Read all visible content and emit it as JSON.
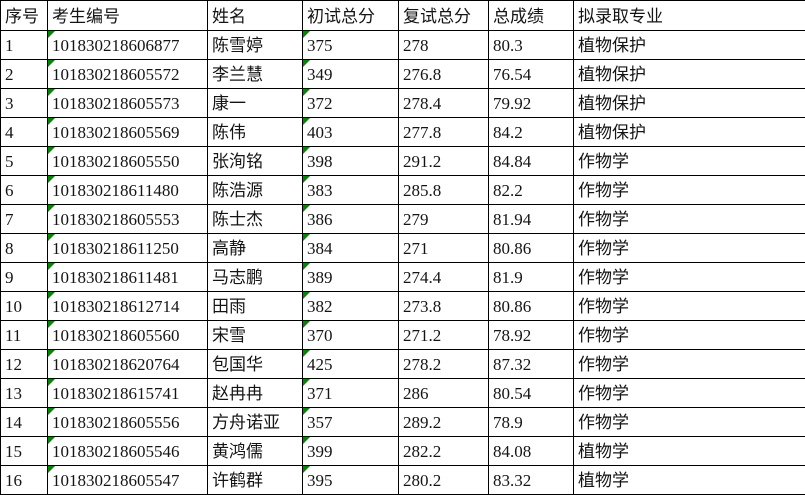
{
  "table": {
    "columns": [
      {
        "key": "seq",
        "label": "序号"
      },
      {
        "key": "candidate-id",
        "label": "考生编号"
      },
      {
        "key": "name",
        "label": "姓名"
      },
      {
        "key": "initial-score",
        "label": "初试总分"
      },
      {
        "key": "retest-score",
        "label": "复试总分"
      },
      {
        "key": "total-score",
        "label": "总成绩"
      },
      {
        "key": "major",
        "label": "拟录取专业"
      }
    ],
    "rows": [
      [
        "1",
        "101830218606877",
        "陈雪婷",
        "375",
        "278",
        "80.3",
        "植物保护"
      ],
      [
        "2",
        "101830218605572",
        "李兰慧",
        "349",
        "276.8",
        "76.54",
        "植物保护"
      ],
      [
        "3",
        "101830218605573",
        "康一",
        "372",
        "278.4",
        "79.92",
        "植物保护"
      ],
      [
        "4",
        "101830218605569",
        "陈伟",
        "403",
        "277.8",
        "84.2",
        "植物保护"
      ],
      [
        "5",
        "101830218605550",
        "张洵铭",
        "398",
        "291.2",
        "84.84",
        "作物学"
      ],
      [
        "6",
        "101830218611480",
        "陈浩源",
        "383",
        "285.8",
        "82.2",
        "作物学"
      ],
      [
        "7",
        "101830218605553",
        "陈士杰",
        "386",
        "279",
        "81.94",
        "作物学"
      ],
      [
        "8",
        "101830218611250",
        "高静",
        "384",
        "271",
        "80.86",
        "作物学"
      ],
      [
        "9",
        "101830218611481",
        "马志鹏",
        "389",
        "274.4",
        "81.9",
        "作物学"
      ],
      [
        "10",
        "101830218612714",
        "田雨",
        "382",
        "273.8",
        "80.86",
        "作物学"
      ],
      [
        "11",
        "101830218605560",
        "宋雪",
        "370",
        "271.2",
        "78.92",
        "作物学"
      ],
      [
        "12",
        "101830218620764",
        "包国华",
        "425",
        "278.2",
        "87.32",
        "作物学"
      ],
      [
        "13",
        "101830218615741",
        "赵冉冉",
        "371",
        "286",
        "80.54",
        "作物学"
      ],
      [
        "14",
        "101830218605556",
        "方舟诺亚",
        "357",
        "289.2",
        "78.9",
        "作物学"
      ],
      [
        "15",
        "101830218605546",
        "黄鸿儒",
        "399",
        "282.2",
        "84.08",
        "植物学"
      ],
      [
        "16",
        "101830218605547",
        "许鹤群",
        "395",
        "280.2",
        "83.32",
        "植物学"
      ]
    ],
    "flagged_columns": [
      1,
      3
    ],
    "colors": {
      "marker": "#038703",
      "border": "#000000",
      "text": "#141414",
      "background": "#ffffff"
    }
  }
}
